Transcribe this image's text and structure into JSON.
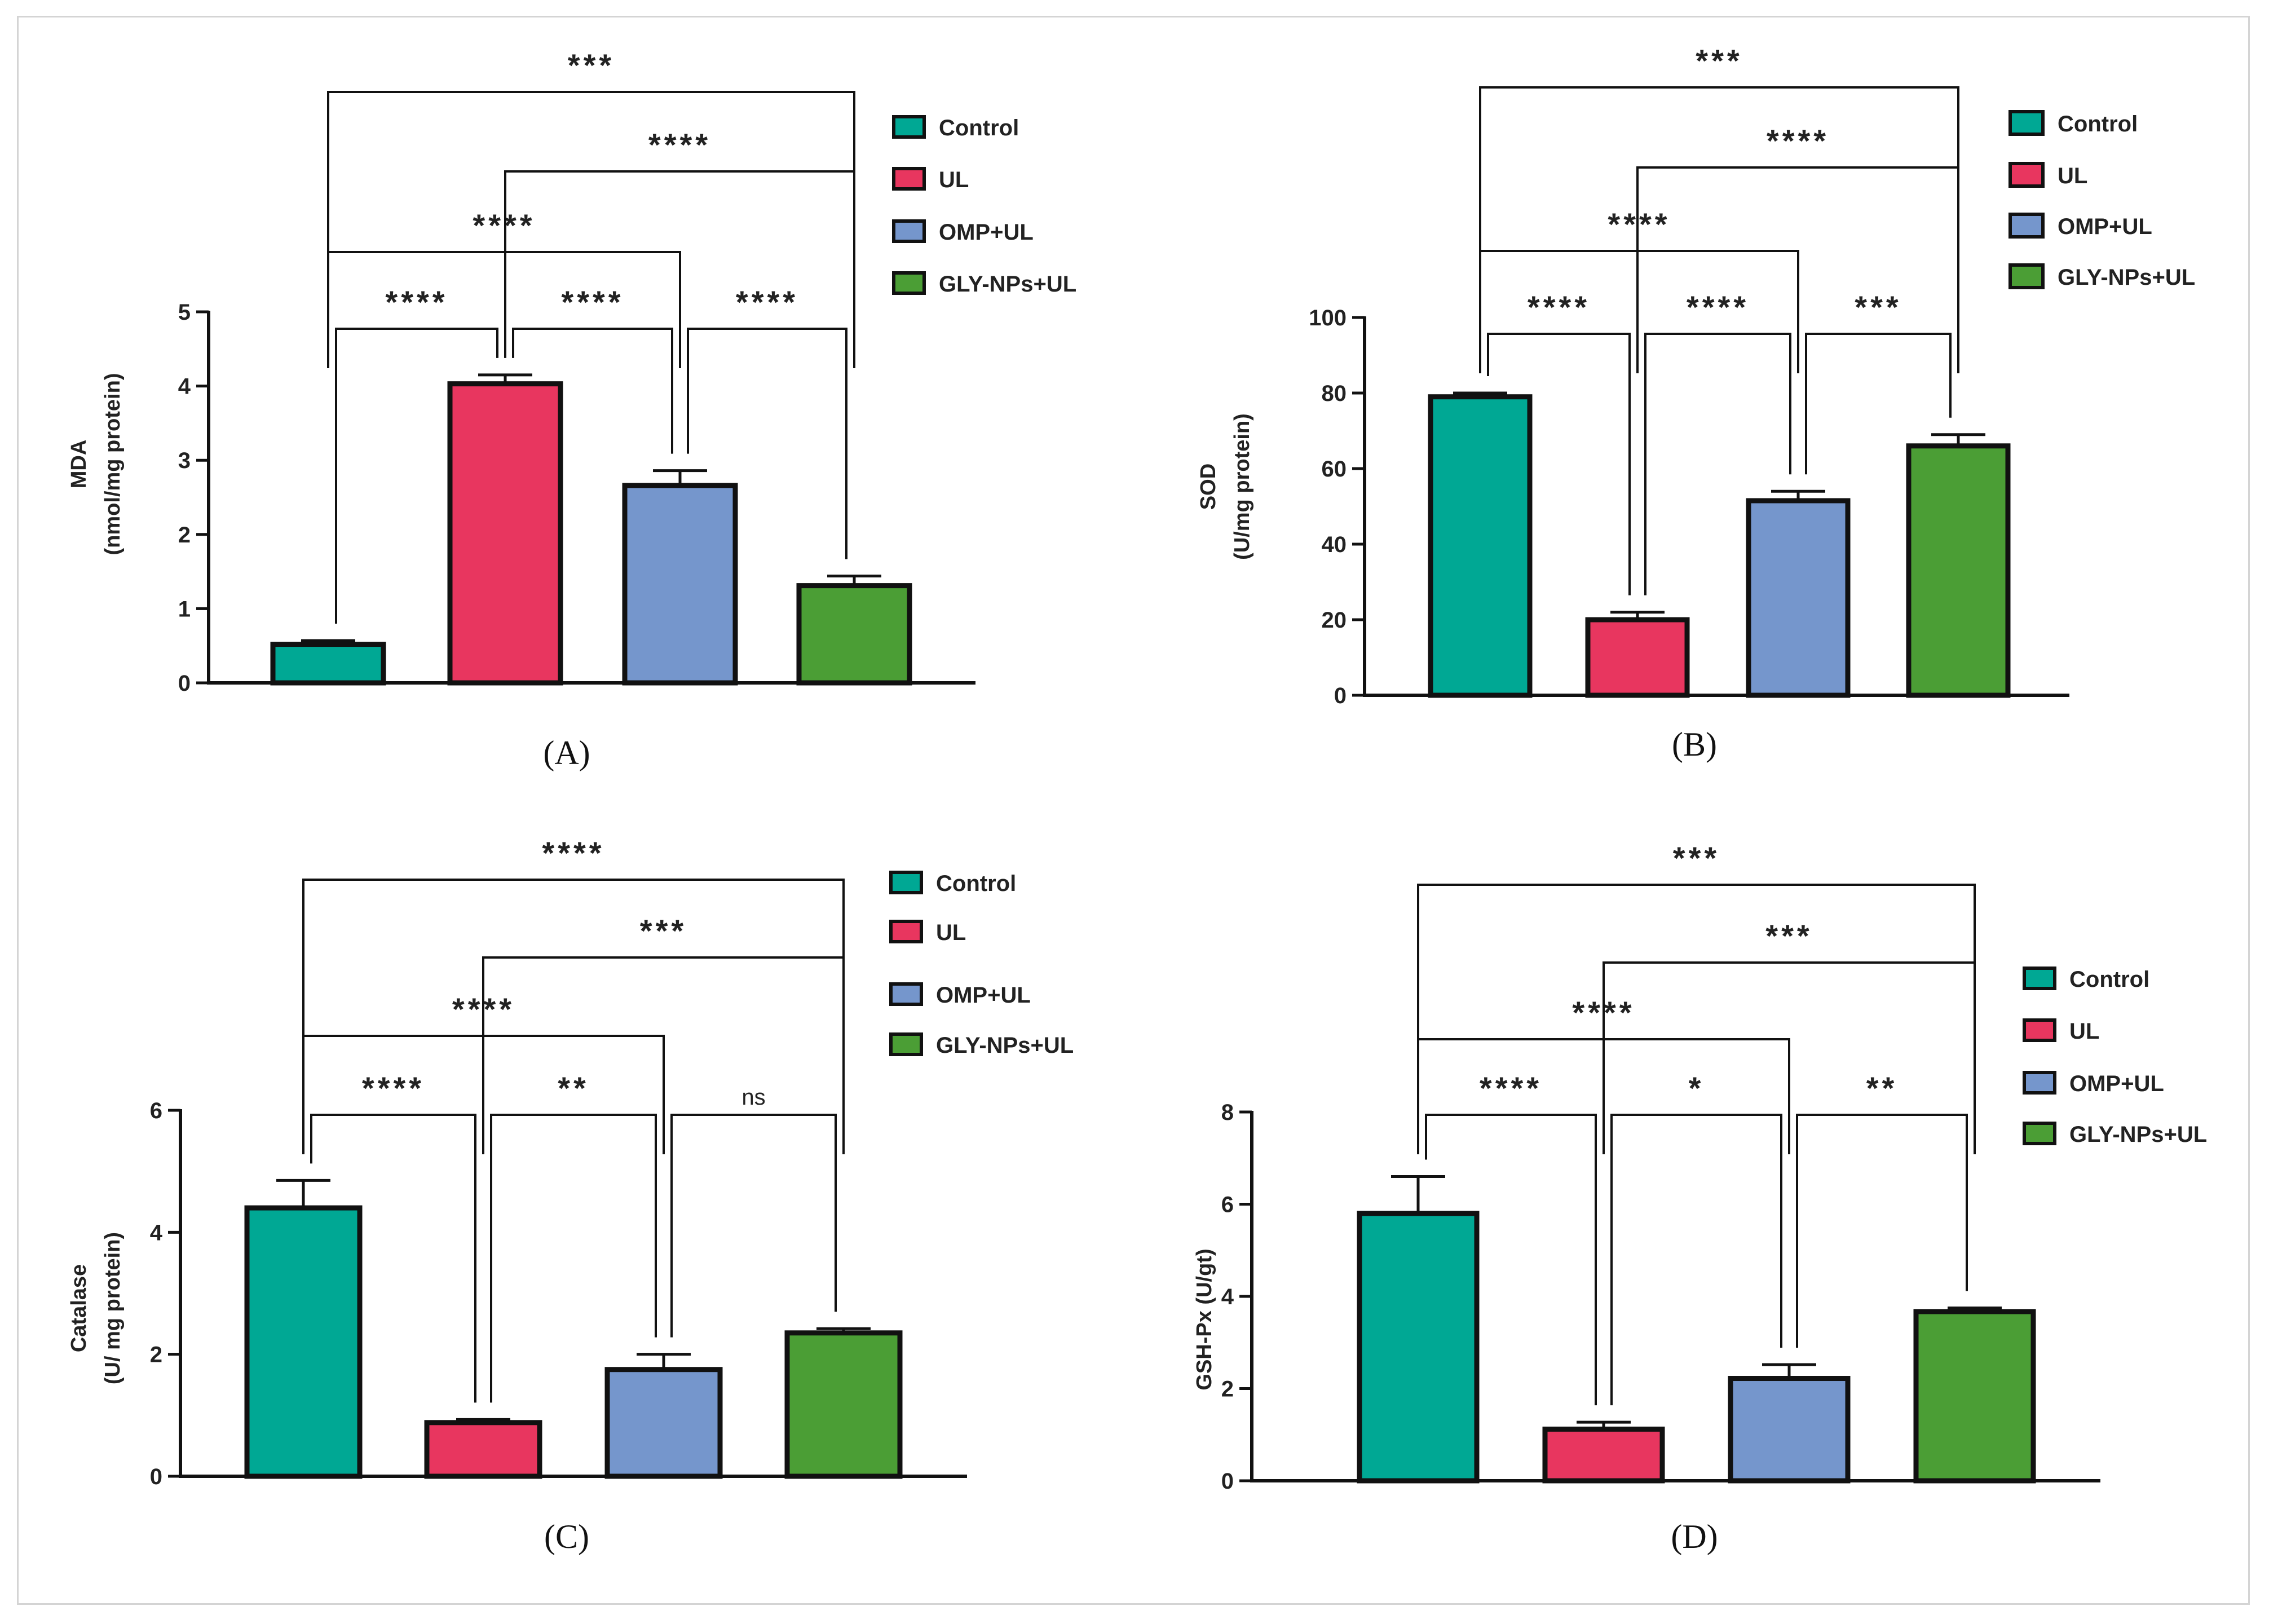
{
  "legend_labels": [
    "Control",
    "UL",
    "OMP+UL",
    "GLY-NPs+UL"
  ],
  "colors": {
    "control": "#00a894",
    "ul": "#e8365f",
    "omp_ul": "#7596cc",
    "gly_ul": "#4b9e35"
  },
  "chart_data": [
    {
      "type": "bar",
      "panel": "A",
      "caption": "(A)",
      "ylabel_line1": "MDA",
      "ylabel_line2": "(nmol/mg protein)",
      "categories": [
        "Control",
        "UL",
        "OMP+UL",
        "GLY-NPs+UL"
      ],
      "values": [
        0.52,
        4.03,
        2.66,
        1.31
      ],
      "errors": [
        0.05,
        0.12,
        0.2,
        0.13
      ],
      "ylim": [
        0,
        5
      ],
      "yticks": [
        0,
        1,
        2,
        3,
        4,
        5
      ],
      "comparisons": [
        {
          "from": 0,
          "to": 1,
          "label": "****"
        },
        {
          "from": 1,
          "to": 2,
          "label": "****"
        },
        {
          "from": 2,
          "to": 3,
          "label": "****"
        },
        {
          "from": 0,
          "to": 2,
          "label": "****"
        },
        {
          "from": 1,
          "to": 3,
          "label": "****"
        },
        {
          "from": 0,
          "to": 3,
          "label": "***"
        }
      ]
    },
    {
      "type": "bar",
      "panel": "B",
      "caption": "(B)",
      "ylabel_line1": "SOD",
      "ylabel_line2": "(U/mg protein)",
      "categories": [
        "Control",
        "UL",
        "OMP+UL",
        "GLY-NPs+UL"
      ],
      "values": [
        79,
        20,
        51.5,
        66
      ],
      "errors": [
        1,
        2,
        2.5,
        3
      ],
      "ylim": [
        0,
        100
      ],
      "yticks": [
        0,
        20,
        40,
        60,
        80,
        100
      ],
      "comparisons": [
        {
          "from": 0,
          "to": 1,
          "label": "****"
        },
        {
          "from": 1,
          "to": 2,
          "label": "****"
        },
        {
          "from": 2,
          "to": 3,
          "label": "***"
        },
        {
          "from": 0,
          "to": 2,
          "label": "****"
        },
        {
          "from": 1,
          "to": 3,
          "label": "****"
        },
        {
          "from": 0,
          "to": 3,
          "label": "***"
        }
      ]
    },
    {
      "type": "bar",
      "panel": "C",
      "caption": "(C)",
      "ylabel_line1": "Catalase",
      "ylabel_line2": "(U/ mg  protein)",
      "categories": [
        "Control",
        "UL",
        "OMP+UL",
        "GLY-NPs+UL"
      ],
      "values": [
        4.4,
        0.88,
        1.75,
        2.35
      ],
      "errors": [
        0.45,
        0.05,
        0.25,
        0.07
      ],
      "ylim": [
        0,
        6
      ],
      "yticks": [
        0,
        2,
        4,
        6
      ],
      "comparisons": [
        {
          "from": 0,
          "to": 1,
          "label": "****"
        },
        {
          "from": 1,
          "to": 2,
          "label": "**"
        },
        {
          "from": 2,
          "to": 3,
          "label": "ns"
        },
        {
          "from": 0,
          "to": 2,
          "label": "****"
        },
        {
          "from": 1,
          "to": 3,
          "label": "***"
        },
        {
          "from": 0,
          "to": 3,
          "label": "****"
        }
      ]
    },
    {
      "type": "bar",
      "panel": "D",
      "caption": "(D)",
      "ylabel_line1": "GSH-Px (U/gt)",
      "ylabel_line2": "",
      "categories": [
        "Control",
        "UL",
        "OMP+UL",
        "GLY-NPs+UL"
      ],
      "values": [
        5.8,
        1.12,
        2.22,
        3.67
      ],
      "errors": [
        0.8,
        0.15,
        0.3,
        0.08
      ],
      "ylim": [
        0,
        8
      ],
      "yticks": [
        0,
        2,
        4,
        6,
        8
      ],
      "comparisons": [
        {
          "from": 0,
          "to": 1,
          "label": "****"
        },
        {
          "from": 1,
          "to": 2,
          "label": "*"
        },
        {
          "from": 2,
          "to": 3,
          "label": "**"
        },
        {
          "from": 0,
          "to": 2,
          "label": "****"
        },
        {
          "from": 1,
          "to": 3,
          "label": "***"
        },
        {
          "from": 0,
          "to": 3,
          "label": "***"
        }
      ]
    }
  ]
}
